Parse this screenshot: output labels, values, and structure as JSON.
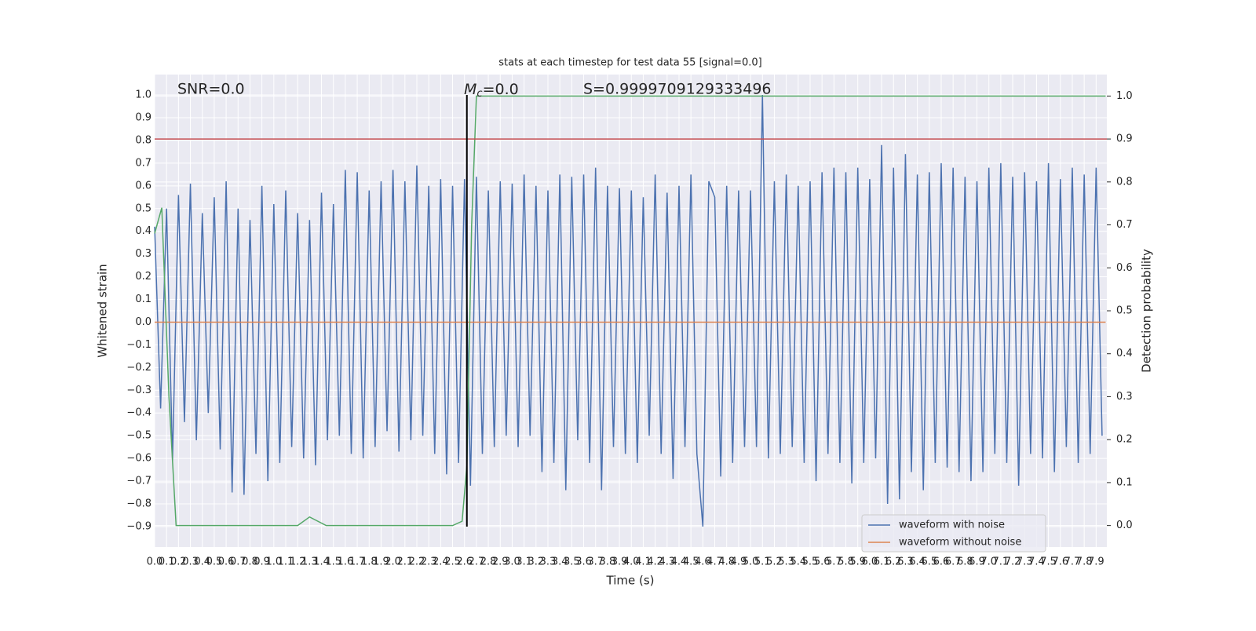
{
  "chart_data": {
    "type": "line",
    "title": "stats at each timestep for test data 55 [signal=0.0]",
    "xlabel": "Time (s)",
    "ylabel": "Whitened strain",
    "y2label": "Detection probability",
    "annotations": {
      "snr": "SNR=0.0",
      "mc": {
        "symbol": "M",
        "sub": "c",
        "rest": "=0.0"
      },
      "s": "S=0.9999709129333496"
    },
    "xlim": [
      0,
      7.99
    ],
    "ylim": [
      -0.99,
      1.09
    ],
    "y2lim": [
      -0.05,
      1.05
    ],
    "xticks": [
      {
        "value": 0,
        "label": "0.0"
      },
      0.1,
      0.2,
      0.3,
      0.4,
      0.5,
      0.6,
      0.7,
      0.8,
      0.9,
      {
        "value": 1,
        "label": "1.0"
      },
      1.1,
      1.2,
      1.3,
      1.4,
      1.5,
      1.6,
      1.7,
      1.8,
      1.9,
      {
        "value": 2,
        "label": "2.0"
      },
      2.1,
      2.2,
      2.3,
      2.4,
      2.5,
      2.6,
      2.7,
      2.8,
      2.9,
      {
        "value": 3,
        "label": "3.0"
      },
      3.1,
      3.2,
      3.3,
      3.4,
      3.5,
      3.6,
      3.7,
      3.8,
      3.9,
      {
        "value": 4,
        "label": "4.0"
      },
      4.1,
      4.2,
      4.3,
      4.4,
      4.5,
      4.6,
      4.7,
      4.8,
      4.9,
      {
        "value": 5,
        "label": "5.0"
      },
      5.1,
      5.2,
      5.3,
      5.4,
      5.5,
      5.6,
      5.7,
      5.8,
      5.9,
      {
        "value": 6,
        "label": "6.0"
      },
      6.1,
      6.2,
      6.3,
      6.4,
      6.5,
      6.6,
      6.7,
      6.8,
      6.9,
      {
        "value": 7,
        "label": "7.0"
      },
      7.1,
      7.2,
      7.3,
      7.4,
      7.5,
      7.6,
      7.7,
      7.8,
      7.9
    ],
    "yticks": [
      {
        "value": -0.9,
        "label": "−0.9"
      },
      {
        "value": -0.8,
        "label": "−0.8"
      },
      {
        "value": -0.7,
        "label": "−0.7"
      },
      {
        "value": -0.6,
        "label": "−0.6"
      },
      {
        "value": -0.5,
        "label": "−0.5"
      },
      {
        "value": -0.4,
        "label": "−0.4"
      },
      {
        "value": -0.3,
        "label": "−0.3"
      },
      {
        "value": -0.2,
        "label": "−0.2"
      },
      {
        "value": -0.1,
        "label": "−0.1"
      },
      {
        "value": 0,
        "label": "0.0"
      },
      0.1,
      0.2,
      0.3,
      0.4,
      0.5,
      0.6,
      0.7,
      0.8,
      0.9,
      {
        "value": 1,
        "label": "1.0"
      }
    ],
    "y2ticks": [
      {
        "value": 0,
        "label": "0.0"
      },
      0.1,
      0.2,
      0.3,
      0.4,
      0.5,
      0.6,
      0.7,
      0.8,
      0.9,
      {
        "value": 1,
        "label": "1.0"
      }
    ],
    "grid": true,
    "legend": "lower right",
    "series": [
      {
        "name": "waveform with noise",
        "color": "#4c72b0",
        "x": [
          0,
          0.05,
          0.1,
          0.15,
          0.2,
          0.25,
          0.3,
          0.35,
          0.4,
          0.45,
          0.5,
          0.55,
          0.6,
          0.65,
          0.7,
          0.75,
          0.8,
          0.85,
          0.9,
          0.95,
          1,
          1.05,
          1.1,
          1.15,
          1.2,
          1.25,
          1.3,
          1.35,
          1.4,
          1.45,
          1.5,
          1.55,
          1.6,
          1.65,
          1.7,
          1.75,
          1.8,
          1.85,
          1.9,
          1.95,
          2,
          2.05,
          2.1,
          2.15,
          2.2,
          2.25,
          2.3,
          2.35,
          2.4,
          2.45,
          2.5,
          2.55,
          2.6,
          2.65,
          2.7,
          2.75,
          2.8,
          2.85,
          2.9,
          2.95,
          3,
          3.05,
          3.1,
          3.15,
          3.2,
          3.25,
          3.3,
          3.35,
          3.4,
          3.45,
          3.5,
          3.55,
          3.6,
          3.65,
          3.7,
          3.75,
          3.8,
          3.85,
          3.9,
          3.95,
          4,
          4.05,
          4.1,
          4.15,
          4.2,
          4.25,
          4.3,
          4.35,
          4.4,
          4.45,
          4.5,
          4.55,
          4.6,
          4.65,
          4.7,
          4.75,
          4.8,
          4.85,
          4.9,
          4.95,
          5,
          5.05,
          5.1,
          5.15,
          5.2,
          5.25,
          5.3,
          5.35,
          5.4,
          5.45,
          5.5,
          5.55,
          5.6,
          5.65,
          5.7,
          5.75,
          5.8,
          5.85,
          5.9,
          5.95,
          6,
          6.05,
          6.1,
          6.15,
          6.2,
          6.25,
          6.3,
          6.35,
          6.4,
          6.45,
          6.5,
          6.55,
          6.6,
          6.65,
          6.7,
          6.75,
          6.8,
          6.85,
          6.9,
          6.95,
          7,
          7.05,
          7.1,
          7.15,
          7.2,
          7.25,
          7.3,
          7.35,
          7.4,
          7.45,
          7.5,
          7.55,
          7.6,
          7.65,
          7.7,
          7.75,
          7.8,
          7.85,
          7.9,
          7.95
        ],
        "values": [
          0.42,
          -0.38,
          0.5,
          -0.61,
          0.56,
          -0.44,
          0.61,
          -0.52,
          0.48,
          -0.4,
          0.55,
          -0.56,
          0.62,
          -0.75,
          0.5,
          -0.76,
          0.45,
          -0.58,
          0.6,
          -0.7,
          0.52,
          -0.62,
          0.58,
          -0.55,
          0.48,
          -0.6,
          0.45,
          -0.63,
          0.57,
          -0.52,
          0.52,
          -0.5,
          0.67,
          -0.58,
          0.66,
          -0.6,
          0.58,
          -0.55,
          0.62,
          -0.48,
          0.67,
          -0.57,
          0.62,
          -0.52,
          0.69,
          -0.5,
          0.6,
          -0.58,
          0.63,
          -0.67,
          0.6,
          -0.62,
          0.63,
          -0.72,
          0.64,
          -0.58,
          0.58,
          -0.55,
          0.62,
          -0.5,
          0.61,
          -0.55,
          0.65,
          -0.5,
          0.6,
          -0.66,
          0.58,
          -0.62,
          0.65,
          -0.74,
          0.64,
          -0.52,
          0.65,
          -0.62,
          0.68,
          -0.74,
          0.6,
          -0.55,
          0.59,
          -0.58,
          0.58,
          -0.62,
          0.55,
          -0.5,
          0.65,
          -0.58,
          0.57,
          -0.69,
          0.6,
          -0.55,
          0.65,
          -0.58,
          -0.9,
          0.62,
          0.55,
          -0.68,
          0.6,
          -0.62,
          0.58,
          -0.55,
          0.58,
          -0.55,
          1.0,
          -0.6,
          0.62,
          -0.58,
          0.65,
          -0.55,
          0.6,
          -0.62,
          0.62,
          -0.7,
          0.66,
          -0.58,
          0.68,
          -0.62,
          0.66,
          -0.71,
          0.68,
          -0.62,
          0.63,
          -0.6,
          0.78,
          -0.8,
          0.68,
          -0.78,
          0.74,
          -0.66,
          0.65,
          -0.74,
          0.66,
          -0.62,
          0.7,
          -0.64,
          0.68,
          -0.66,
          0.64,
          -0.7,
          0.62,
          -0.66,
          0.68,
          -0.58,
          0.7,
          -0.62,
          0.64,
          -0.72,
          0.66,
          -0.58,
          0.62,
          -0.6,
          0.7,
          -0.66,
          0.63,
          -0.55,
          0.68,
          -0.62,
          0.65,
          -0.58,
          0.68,
          -0.5
        ]
      },
      {
        "name": "waveform without noise",
        "color": "#dd8452",
        "x": [
          0,
          7.98
        ],
        "values": [
          0,
          0
        ]
      }
    ],
    "probability": {
      "color": "#55a868",
      "axis": "y2",
      "x": [
        0,
        0.06,
        0.12,
        0.18,
        0.24,
        1.2,
        1.3,
        1.44,
        2.5,
        2.58,
        2.62,
        2.66,
        2.7,
        7.98
      ],
      "values": [
        0.68,
        0.74,
        0.3,
        0,
        0,
        0,
        0.02,
        0,
        0,
        0.01,
        0.14,
        0.7,
        1,
        1
      ]
    },
    "threshold": {
      "value": 0.9,
      "axis": "y2",
      "color": "#c44e52"
    },
    "vline": {
      "x": 2.62,
      "color": "#000000"
    }
  }
}
